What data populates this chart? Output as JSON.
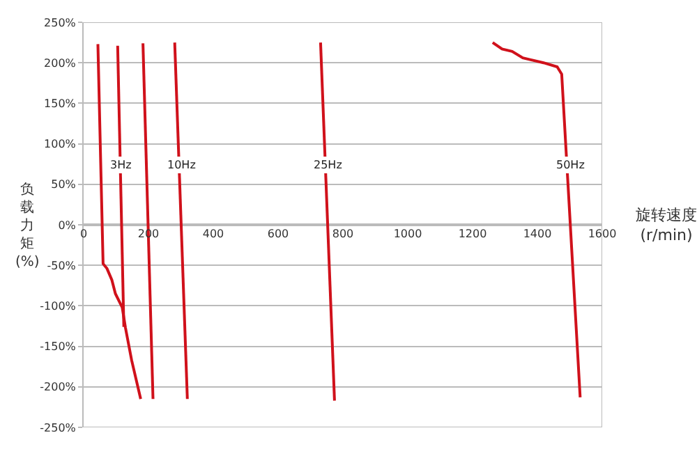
{
  "chart_data": {
    "type": "line",
    "xlabel": "旋转速度\n(r/min)",
    "ylabel": "负载力矩(%)",
    "xlim": [
      0,
      1600
    ],
    "xticks": [
      0,
      200,
      400,
      600,
      800,
      1000,
      1200,
      1400,
      1600
    ],
    "ylim": [
      -250,
      250
    ],
    "yticks": [
      {
        "value": -250,
        "label": "-250%"
      },
      {
        "value": -200,
        "label": "-200%"
      },
      {
        "value": -150,
        "label": "-150%"
      },
      {
        "value": -100,
        "label": "-100%"
      },
      {
        "value": -50,
        "label": "-50%"
      },
      {
        "value": 0,
        "label": "0%"
      },
      {
        "value": 50,
        "label": "50%"
      },
      {
        "value": 100,
        "label": "100%"
      },
      {
        "value": 150,
        "label": "150%"
      },
      {
        "value": 200,
        "label": "200%"
      },
      {
        "value": 250,
        "label": "250%"
      }
    ],
    "grid": "y",
    "marker": "none",
    "line_style": "solid",
    "series": [
      {
        "color": "#d0111b",
        "x": [
          44,
          60,
          72,
          87,
          98,
          119,
          129,
          148,
          176
        ],
        "values": [
          223,
          -48,
          -54,
          -68,
          -85,
          -102,
          -127,
          -167,
          -215
        ]
      },
      {
        "color": "#d0111b",
        "x": [
          105,
          124
        ],
        "values": [
          221,
          -126
        ]
      },
      {
        "color": "#d0111b",
        "x": [
          183,
          214
        ],
        "values": [
          224,
          -215
        ]
      },
      {
        "color": "#d0111b",
        "x": [
          281,
          320
        ],
        "values": [
          225,
          -215
        ]
      },
      {
        "color": "#d0111b",
        "x": [
          731,
          774
        ],
        "values": [
          225,
          -217
        ]
      },
      {
        "color": "#d0111b",
        "x": [
          1262,
          1291,
          1322,
          1355,
          1419,
          1461,
          1475,
          1532
        ],
        "values": [
          225,
          217,
          214,
          206,
          200,
          195,
          186,
          -213
        ]
      }
    ],
    "annotations": [
      {
        "text": "3Hz",
        "x": 115,
        "y": 74
      },
      {
        "text": "10Hz",
        "x": 300,
        "y": 74
      },
      {
        "text": "25Hz",
        "x": 752,
        "y": 74
      },
      {
        "text": "50Hz",
        "x": 1500,
        "y": 74
      }
    ]
  }
}
